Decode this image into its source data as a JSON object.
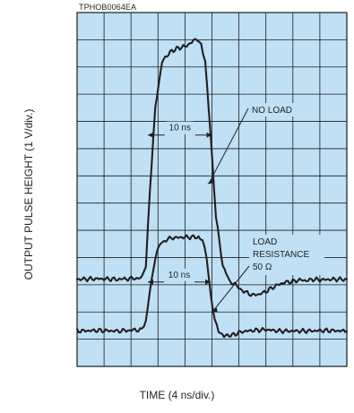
{
  "document_code": "TPHOB0064EA",
  "chart_data": {
    "type": "line",
    "xlabel": "TIME (4 ns/div.)",
    "ylabel": "OUTPUT PULSE HEIGHT (1 V/div.)",
    "grid": true,
    "grid_divisions": {
      "x": 10,
      "y": 13
    },
    "xlim": [
      0,
      40
    ],
    "ylim": [
      0,
      13
    ],
    "colors": {
      "background": "#bfe0f5",
      "grid": "#1d1d1b",
      "trace": "#231f20"
    },
    "series": [
      {
        "name": "NO LOAD",
        "x": [
          0,
          3,
          6,
          9.6,
          10.2,
          10.8,
          11.6,
          12.6,
          13.8,
          15,
          16,
          17,
          17.8,
          18.4,
          19,
          19.8,
          20.6,
          21.6,
          22.6,
          23.4,
          24.2,
          25,
          26,
          27,
          28,
          29,
          30,
          31,
          32,
          33,
          34,
          35,
          36,
          38,
          40
        ],
        "y": [
          3.2,
          3.22,
          3.2,
          3.25,
          3.7,
          6.5,
          9.5,
          11.2,
          11.55,
          11.7,
          11.75,
          11.9,
          12.05,
          11.85,
          11.2,
          8.5,
          5.5,
          3.7,
          3.15,
          3.0,
          2.85,
          2.72,
          2.62,
          2.65,
          2.75,
          2.9,
          3.02,
          3.1,
          3.12,
          3.18,
          3.15,
          3.2,
          3.18,
          3.2,
          3.2
        ]
      },
      {
        "name": "LOAD RESISTANCE 50 Ω",
        "x": [
          0,
          3,
          6,
          9.6,
          10.2,
          10.8,
          11.6,
          12.4,
          14,
          16,
          18,
          18.6,
          19.2,
          19.8,
          20.4,
          21,
          21.8,
          23,
          24.5,
          26,
          28,
          30,
          34,
          37,
          40
        ],
        "y": [
          1.3,
          1.32,
          1.3,
          1.35,
          1.6,
          2.8,
          4.0,
          4.55,
          4.72,
          4.75,
          4.75,
          4.65,
          4.0,
          2.6,
          1.7,
          1.3,
          1.12,
          1.15,
          1.28,
          1.32,
          1.35,
          1.3,
          1.3,
          1.32,
          1.3
        ]
      }
    ],
    "annotations": [
      {
        "text": "10 ns",
        "x_from": 10.5,
        "x_to": 20.0,
        "y": 8.6
      },
      {
        "text": "10 ns",
        "x_from": 10.5,
        "x_to": 19.8,
        "y": 3.2
      },
      {
        "lines": [
          "NO LOAD"
        ],
        "target": [
          19.3,
          6.7
        ]
      },
      {
        "lines": [
          "LOAD",
          "RESISTANCE",
          "50 Ω"
        ],
        "target": [
          19.9,
          2.0
        ]
      }
    ]
  }
}
